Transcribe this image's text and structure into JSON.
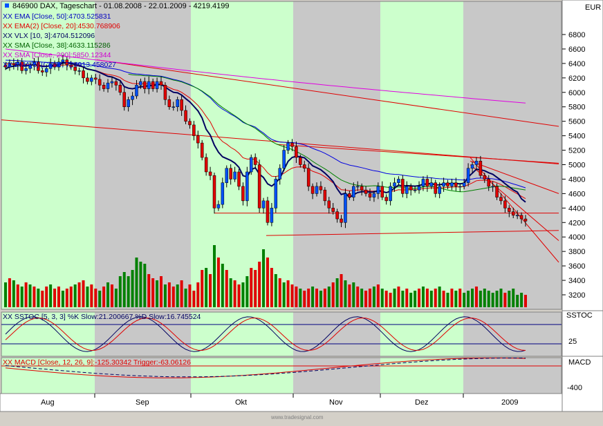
{
  "header": {
    "title_line": "846900  DAX, Tageschart - 01.08.2008 - 22.01.2009 - 4219.4199",
    "indicators": [
      {
        "text": "XX EMA [Close, 50]:4703.525831",
        "color": "#0000c0"
      },
      {
        "text": "XX EMA(2) [Close, 20]:4530.768906",
        "color": "#e00000"
      },
      {
        "text": "XX VLX [10, 3]:4704.512096",
        "color": "#000060"
      },
      {
        "text": "XX SMA [Close, 38]:4633.115286",
        "color": "#006000"
      },
      {
        "text": "XX SMA [Close, 200]:5850.12344",
        "color": "#d000d0"
      },
      {
        "text": "XX EMA(3) [Close, 7]:4913.458027",
        "color": "#0000c0"
      }
    ]
  },
  "currency": "EUR",
  "panel_labels": {
    "sstoc": "SSTOC",
    "macd": "MACD"
  },
  "sstoc_caption": "XX SSTOC [5, 3, 3] %K Slow:21.200667 %D Slow:16.745524",
  "macd_caption": "XX MACD [Close, 12, 26, 9]:-125.30342  Trigger:-63.06126",
  "sstoc_tick": "25",
  "macd_tick": "-400",
  "footer": "www.tradesignal.com",
  "colors": {
    "up_candle": "#0050ff",
    "down_candle": "#e00000",
    "volume_up": "#008000",
    "volume_down": "#e00000",
    "band_green": "#ccffcc",
    "band_gray": "#c8c8c8",
    "ema50": "#0000e0",
    "ema20": "#e00000",
    "vlx": "#000060",
    "sma38": "#008000",
    "sma200": "#e000e0",
    "trend": "#e00000"
  },
  "chart_data": {
    "type": "candlestick",
    "y_axis_ticks": [
      "6800",
      "6600",
      "6400",
      "6200",
      "6000",
      "5800",
      "5600",
      "5400",
      "5200",
      "5000",
      "4800",
      "4600",
      "4400",
      "4200",
      "4000",
      "3800",
      "3600",
      "3400",
      "3200"
    ],
    "ylim": [
      3100,
      6900
    ],
    "x_tick_labels": [
      "Aug",
      "Sep",
      "Okt",
      "Nov",
      "Dez",
      "2009"
    ],
    "closes": [
      6350,
      6400,
      6380,
      6420,
      6300,
      6330,
      6380,
      6420,
      6300,
      6280,
      6330,
      6400,
      6350,
      6420,
      6450,
      6380,
      6350,
      6300,
      6300,
      6200,
      6150,
      6200,
      6180,
      6100,
      6050,
      6130,
      6150,
      6100,
      6000,
      5800,
      5900,
      5950,
      6100,
      6150,
      6050,
      6150,
      6050,
      6150,
      6100,
      5900,
      5800,
      5800,
      5900,
      5750,
      5600,
      5550,
      5400,
      5300,
      5100,
      4900,
      4850,
      4400,
      4450,
      4750,
      4950,
      4800,
      4900,
      4700,
      4500,
      4900,
      5100,
      5000,
      4400,
      4500,
      4200,
      4400,
      4800,
      4950,
      5200,
      5300,
      5250,
      5100,
      5000,
      4950,
      4700,
      4600,
      4700,
      4650,
      4500,
      4400,
      4350,
      4250,
      4200,
      4600,
      4550,
      4700,
      4700,
      4650,
      4600,
      4550,
      4600,
      4700,
      4550,
      4500,
      4700,
      4750,
      4800,
      4600,
      4700,
      4650,
      4650,
      4700,
      4800,
      4700,
      4750,
      4600,
      4700,
      4750,
      4700,
      4750,
      4700,
      4700,
      4750,
      4950,
      5000,
      5050,
      4850,
      4800,
      4700,
      4700,
      4550,
      4500,
      4400,
      4350,
      4300,
      4300,
      4250,
      4220
    ],
    "volume": [
      60,
      70,
      65,
      55,
      50,
      60,
      55,
      50,
      45,
      40,
      50,
      55,
      45,
      50,
      40,
      45,
      50,
      55,
      60,
      65,
      50,
      55,
      45,
      40,
      50,
      60,
      55,
      45,
      75,
      85,
      75,
      90,
      120,
      110,
      105,
      80,
      70,
      65,
      75,
      55,
      60,
      50,
      55,
      65,
      45,
      55,
      40,
      60,
      90,
      95,
      80,
      150,
      120,
      105,
      90,
      70,
      65,
      55,
      60,
      75,
      95,
      90,
      110,
      140,
      120,
      95,
      80,
      70,
      60,
      65,
      55,
      50,
      45,
      40,
      45,
      50,
      45,
      40,
      45,
      50,
      60,
      70,
      80,
      65,
      55,
      60,
      50,
      45,
      40,
      45,
      50,
      55,
      45,
      40,
      35,
      45,
      50,
      40,
      45,
      35,
      40,
      45,
      50,
      45,
      40,
      45,
      50,
      40,
      35,
      45,
      40,
      45,
      35,
      40,
      45,
      50,
      40,
      45,
      40,
      35,
      40,
      45,
      35,
      40,
      45,
      30,
      35,
      30
    ],
    "vol_up": [
      1,
      0,
      1,
      0,
      1,
      0,
      1,
      0,
      1,
      0,
      0,
      1,
      0,
      0,
      1,
      0,
      0,
      1,
      0,
      0,
      1,
      0,
      0,
      1,
      0,
      1,
      0,
      1,
      1,
      1,
      1,
      1,
      1,
      1,
      1,
      0,
      0,
      1,
      0,
      1,
      0,
      0,
      1,
      0,
      1,
      0,
      0,
      0,
      0,
      1,
      0,
      1,
      0,
      1,
      0,
      1,
      0,
      0,
      1,
      1,
      0,
      0,
      0,
      1,
      0,
      0,
      1,
      0,
      1,
      0,
      0,
      0,
      1,
      0,
      0,
      1,
      0,
      1,
      0,
      1,
      0,
      1,
      0,
      1,
      0,
      1,
      0,
      1,
      0,
      0,
      1,
      0,
      1,
      0,
      0,
      1,
      0,
      1,
      0,
      1,
      1,
      0,
      1,
      0,
      1,
      0,
      1,
      0,
      1,
      0,
      1,
      0,
      1,
      1,
      1,
      0,
      1,
      1,
      1,
      1,
      1,
      1,
      0,
      1,
      1,
      1,
      1,
      0
    ]
  }
}
